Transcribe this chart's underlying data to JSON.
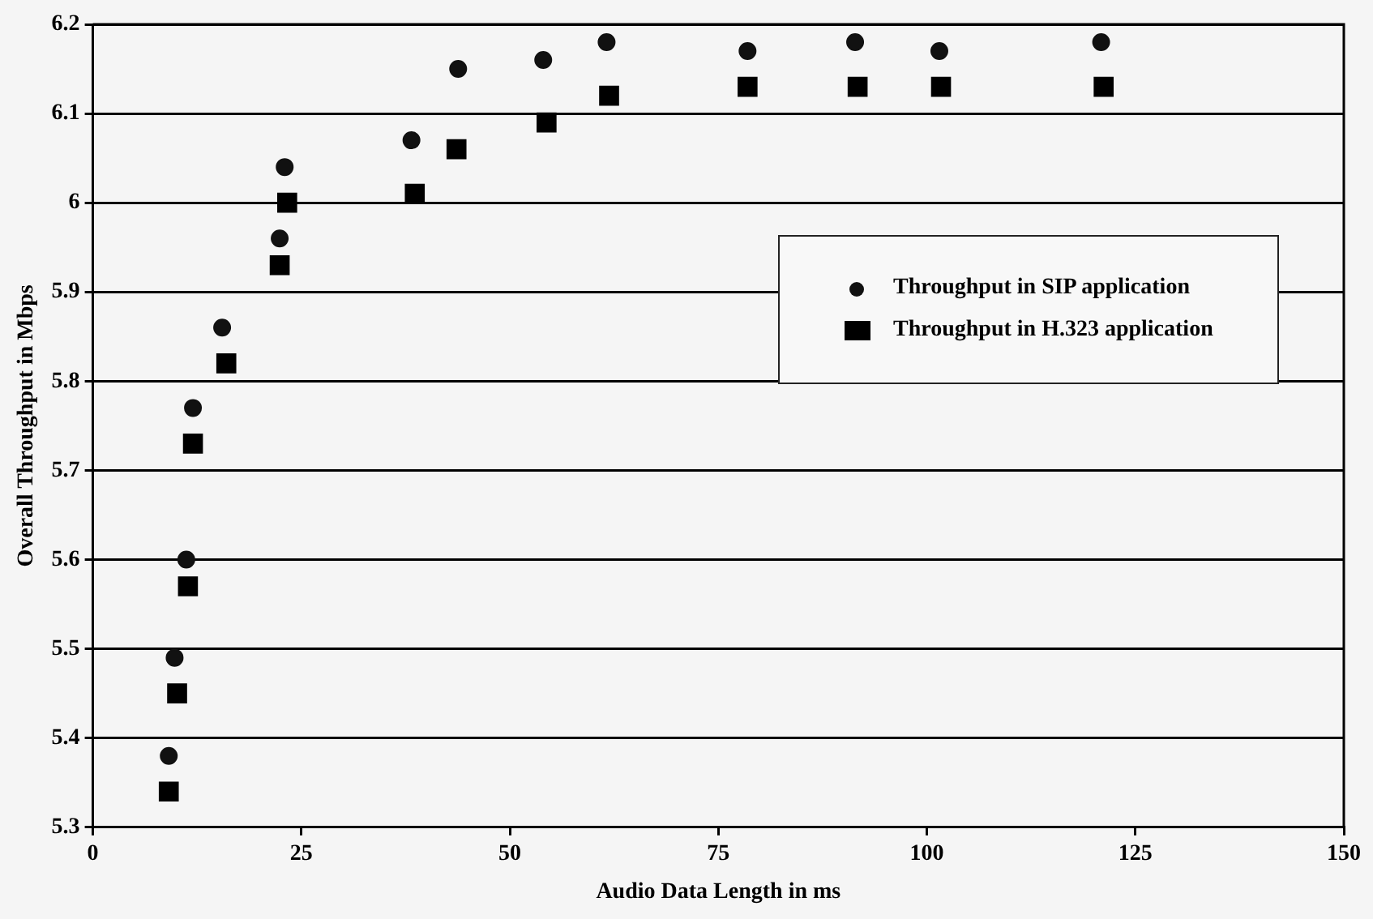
{
  "chart_data": {
    "type": "scatter",
    "xlabel": "Audio Data Length in ms",
    "ylabel": "Overall Throughput in Mbps",
    "xlim": [
      0,
      150
    ],
    "xticks": [
      0,
      25,
      50,
      75,
      100,
      125,
      150
    ],
    "ylim": [
      5.3,
      6.2
    ],
    "yticks": [
      {
        "value": 5.3,
        "label": "5.3"
      },
      {
        "value": 5.4,
        "label": "5.4"
      },
      {
        "value": 5.5,
        "label": "5.5"
      },
      {
        "value": 5.6,
        "label": "5.6"
      },
      {
        "value": 5.7,
        "label": "5.7"
      },
      {
        "value": 5.8,
        "label": "5.8"
      },
      {
        "value": 5.9,
        "label": "5.9"
      },
      {
        "value": 6,
        "label": "6"
      },
      {
        "value": 6.1,
        "label": "6.1"
      },
      {
        "value": 6.2,
        "label": "6.2"
      }
    ],
    "grid": "y",
    "legend": "right",
    "series": [
      {
        "name": "Throughput in SIP application",
        "color": "#111111",
        "marker": "circle",
        "x": [
          9.1,
          9.8,
          11.2,
          12.0,
          15.5,
          22.4,
          23.0,
          38.2,
          43.8,
          54.0,
          61.6,
          78.5,
          91.4,
          101.5,
          120.9
        ],
        "values": [
          5.38,
          5.49,
          5.6,
          5.77,
          5.86,
          5.96,
          6.04,
          6.07,
          6.15,
          6.16,
          6.18,
          6.17,
          6.18,
          6.17,
          6.18
        ]
      },
      {
        "name": "Throughput in H.323 application",
        "color": "#000000",
        "marker": "square",
        "x": [
          9.1,
          10.1,
          11.4,
          12.0,
          16.0,
          22.4,
          23.3,
          38.6,
          43.6,
          54.4,
          61.9,
          78.5,
          91.7,
          101.7,
          121.2
        ],
        "values": [
          5.34,
          5.45,
          5.57,
          5.73,
          5.82,
          5.93,
          6.0,
          6.01,
          6.06,
          6.09,
          6.12,
          6.13,
          6.13,
          6.13,
          6.13
        ]
      }
    ]
  }
}
